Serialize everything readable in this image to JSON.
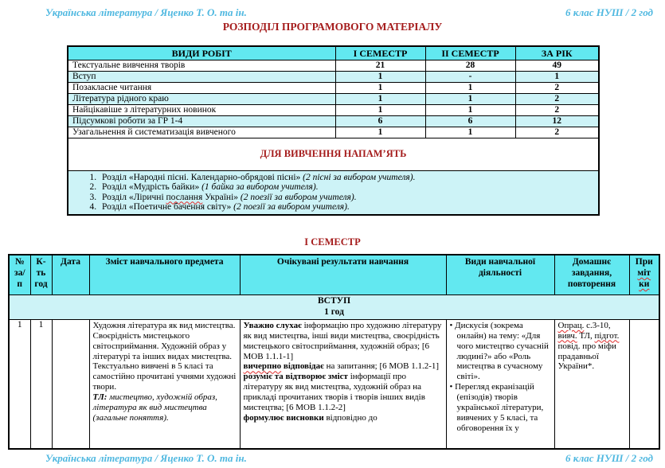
{
  "colors": {
    "accent_blue": "#4fb8e0",
    "accent_red": "#a51c1c",
    "header_cyan": "#62e8f0",
    "row_cyan": "#cdf3f7",
    "squiggle_red": "#e02b2b"
  },
  "page": {
    "header": {
      "left": "Українська література / Яценко Т. О. та ін.",
      "right": "6 клас НУШ / 2 год"
    },
    "footer": {
      "left": "Українська література / Яценко Т. О. та ін.",
      "right": "6 клас НУШ / 2 год"
    },
    "title": "РОЗПОДІЛ ПРОГРАМОВОГО МАТЕРІАЛУ",
    "semester_heading": "І СЕМЕСТР"
  },
  "works_table": {
    "headers": [
      "ВИДИ РОБІТ",
      "І СЕМЕСТР",
      "ІІ СЕМЕСТР",
      "ЗА РІК"
    ],
    "rows": [
      [
        "Текстуальне вивчення творів",
        "21",
        "28",
        "49"
      ],
      [
        "Вступ",
        "1",
        "-",
        "1"
      ],
      [
        "Позакласне читання",
        "1",
        "1",
        "2"
      ],
      [
        "Література рідного краю",
        "1",
        "1",
        "2"
      ],
      [
        "Найцікавіше з літературних новинок",
        "1",
        "1",
        "2"
      ],
      [
        "Підсумкові роботи за ГР 1-4",
        "6",
        "6",
        "12"
      ],
      [
        "Узагальнення й систематизація вивченого",
        "1",
        "1",
        "2"
      ]
    ],
    "memorize_heading": "ДЛЯ ВИВЧЕННЯ НАПАМ’ЯТЬ",
    "memorize_items": [
      [
        {
          "t": "Розділ «Народні пісні. Календарно-обрядові пісні» "
        },
        {
          "t": "(2 пісні за вибором учителя).",
          "i": true
        }
      ],
      [
        {
          "t": "Розділ «Мудрість байки» "
        },
        {
          "t": "(1 байка за вибором учителя).",
          "i": true
        }
      ],
      [
        {
          "t": "Розділ «Ліричні "
        },
        {
          "t": "послання",
          "w": true
        },
        {
          "t": " Україні» "
        },
        {
          "t": "(2 поезії за вибором учителя).",
          "i": true
        }
      ],
      [
        {
          "t": "Розділ «Поетичне бачення світу» "
        },
        {
          "t": "(2 поезії за вибором учителя).",
          "i": true
        }
      ]
    ]
  },
  "plan_table": {
    "headers": {
      "num_lines": [
        "№",
        "за/",
        "п"
      ],
      "hours_lines": [
        "К-",
        "ть",
        "год"
      ],
      "date": "Дата",
      "content": "Зміст навчального предмета",
      "results": "Очікувані результати навчання",
      "activities": "Види навчальної діяльності",
      "homework": "Домашнє завдання, повторення",
      "note_lines": [
        [
          {
            "t": "При"
          }
        ],
        [
          {
            "t": "міт",
            "w": true
          }
        ],
        [
          {
            "t": "ки",
            "w": true
          }
        ]
      ]
    },
    "section": {
      "title": "ВСТУП",
      "hours": "1 год"
    },
    "row": {
      "num": "1",
      "hours": "1",
      "date": "",
      "content_paras": [
        "Художня література як вид мистецтва. Своєрідність мистецького світосприймання. Художній образ у літературі та інших видах мистецтва.",
        "Текстуально вивчені в 5 класі та самостійно прочитані учнями художні твори.",
        [
          {
            "t": "ТЛ: ",
            "b": true,
            "i": true
          },
          {
            "t": "мистецтво, художній образ, література як вид мистецтва (загальне поняття).",
            "i": true
          }
        ]
      ],
      "results_paras": [
        [
          {
            "t": "Уважно слухає",
            "b": true
          },
          {
            "t": " інформацію про художню літературу як вид мистецтва, інші види мистецтва, своєрідність мистецького світосприймання, художній образ; [6 МОВ 1.1.1-1]"
          }
        ],
        [
          {
            "t": "вичерпно",
            "b": true,
            "w": true
          },
          {
            "t": " відповідає",
            "b": true
          },
          {
            "t": " на запитання; [6 МОВ 1.1.2-1]"
          }
        ],
        [
          {
            "t": "розуміє та відтворює зміст",
            "b": true
          },
          {
            "t": " інформації про літературу як вид мистецтва, художній образ на прикладі прочитаних творів і творів інших видів мистецтва; [6 МОВ 1.1.2-2]"
          }
        ],
        [
          {
            "t": "формулює висновки",
            "b": true
          },
          {
            "t": " відповідно до"
          }
        ]
      ],
      "activities_paras": [
        "Дискусія (зокрема онлайн) на тему: «Для чого мистецтво сучасній людині?» або «Роль мистецтва в сучасному світі».",
        "Перегляд екранізацій (епізодів) творів української літератури, вивчених у 5 класі, та обговорення їх у"
      ],
      "homework_paras": [
        [
          {
            "t": "Опрац.",
            "w": true
          },
          {
            "t": " с.3-10, "
          },
          {
            "t": "вивч.",
            "w": true
          },
          {
            "t": " ТЛ, "
          },
          {
            "t": "підгот.",
            "w": true
          },
          {
            "t": " повід. про міфи прадавньої України*."
          }
        ]
      ],
      "note": ""
    }
  }
}
